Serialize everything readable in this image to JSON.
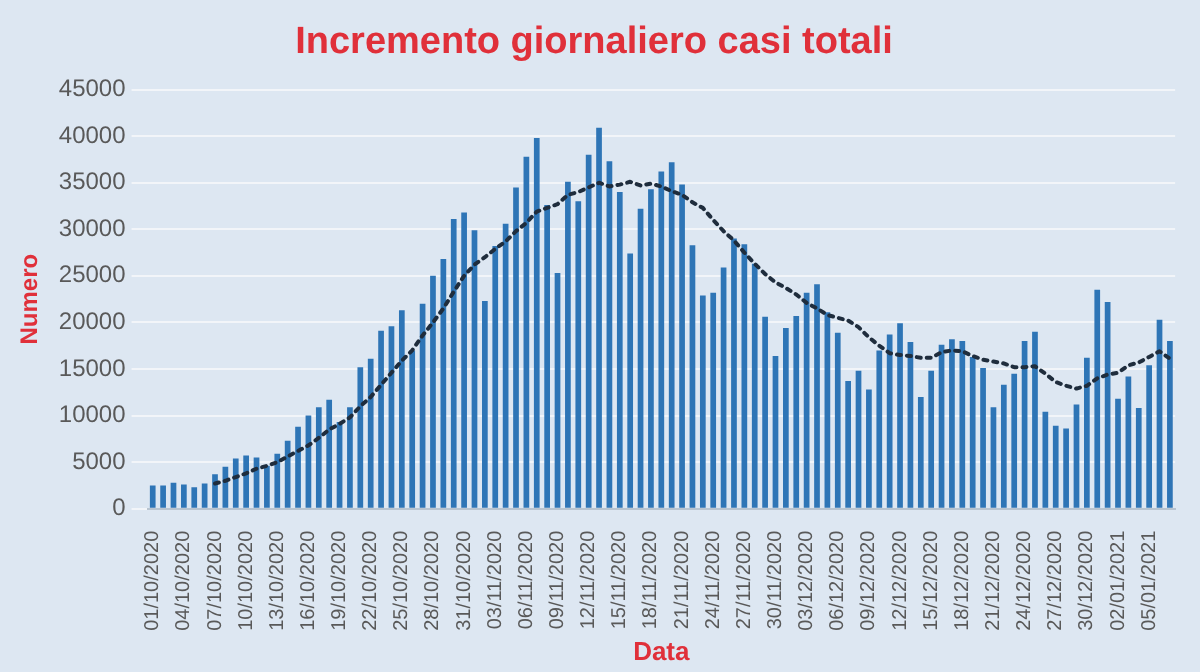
{
  "chart_data": {
    "type": "bar",
    "title": "Incremento giornaliero casi totali",
    "xlabel": "Data",
    "ylabel": "Numero",
    "categories": [
      "01/10/2020",
      null,
      null,
      "04/10/2020",
      null,
      null,
      "07/10/2020",
      null,
      null,
      "10/10/2020",
      null,
      null,
      "13/10/2020",
      null,
      null,
      "16/10/2020",
      null,
      null,
      "19/10/2020",
      null,
      null,
      "22/10/2020",
      null,
      null,
      "25/10/2020",
      null,
      null,
      "28/10/2020",
      null,
      null,
      "31/10/2020",
      null,
      null,
      "03/11/2020",
      null,
      null,
      "06/11/2020",
      null,
      null,
      "09/11/2020",
      null,
      null,
      "12/11/2020",
      null,
      null,
      "15/11/2020",
      null,
      null,
      "18/11/2020",
      null,
      null,
      "21/11/2020",
      null,
      null,
      "24/11/2020",
      null,
      null,
      "27/11/2020",
      null,
      null,
      "30/11/2020",
      null,
      null,
      "03/12/2020",
      null,
      null,
      "06/12/2020",
      null,
      null,
      "09/12/2020",
      null,
      null,
      "12/12/2020",
      null,
      null,
      "15/12/2020",
      null,
      null,
      "18/12/2020",
      null,
      null,
      "21/12/2020",
      null,
      null,
      "24/12/2020",
      null,
      null,
      "27/12/2020",
      null,
      null,
      "30/12/2020",
      null,
      null,
      "02/01/2021",
      null,
      null,
      "05/01/2021",
      null,
      null
    ],
    "series": [
      {
        "color": "#2e75b6",
        "values": [
          2500,
          2500,
          2800,
          2600,
          2300,
          2700,
          3700,
          4500,
          5400,
          5700,
          5500,
          4600,
          5900,
          7300,
          8800,
          10000,
          10900,
          11700,
          9300,
          10900,
          15200,
          16100,
          19100,
          19600,
          21300,
          17000,
          22000,
          25000,
          26800,
          31100,
          31800,
          29900,
          22300,
          28200,
          30600,
          34500,
          37800,
          39800,
          32600,
          25300,
          35100,
          33000,
          38000,
          40900,
          37300,
          34000,
          27400,
          32200,
          34300,
          36200,
          37200,
          34800,
          28300,
          22900,
          23200,
          25900,
          29000,
          28400,
          26300,
          20600,
          16400,
          19400,
          20700,
          23200,
          24100,
          21100,
          18900,
          13700,
          14800,
          12800,
          17000,
          18700,
          19900,
          17900,
          12000,
          14800,
          17600,
          18200,
          18000,
          16300,
          15100,
          10900,
          13300,
          14500,
          18000,
          19000,
          10400,
          8900,
          8600,
          11200,
          16200,
          23500,
          22200,
          11800,
          14200,
          10800,
          15400,
          20300,
          18000
        ]
      },
      {
        "type": "line",
        "color": "#1f2d3d",
        "line_style": "dotted",
        "marker": "none",
        "values": [
          null,
          null,
          null,
          null,
          null,
          null,
          2700,
          3000,
          3400,
          3800,
          4300,
          4600,
          5000,
          5600,
          6200,
          6800,
          7600,
          8500,
          9100,
          9800,
          11000,
          12000,
          13300,
          14600,
          15900,
          17000,
          18600,
          20000,
          21500,
          23300,
          25000,
          26200,
          27000,
          27900,
          28700,
          29800,
          30700,
          31900,
          32300,
          32700,
          33700,
          34000,
          34500,
          35000,
          34600,
          34800,
          35100,
          34700,
          34900,
          34600,
          34100,
          33700,
          32900,
          32300,
          31000,
          29800,
          28800,
          27500,
          26300,
          25200,
          24300,
          23700,
          23000,
          22100,
          21500,
          20800,
          20500,
          20200,
          19500,
          18400,
          17500,
          16700,
          16500,
          16400,
          16200,
          16200,
          16800,
          17000,
          16900,
          16400,
          16000,
          15800,
          15600,
          15200,
          15200,
          15300,
          14500,
          13600,
          13200,
          12900,
          13200,
          14000,
          14400,
          14600,
          15400,
          15700,
          16300,
          16900,
          16100
        ]
      }
    ],
    "ylim": [
      0,
      45000
    ],
    "yticks": [
      0,
      5000,
      10000,
      15000,
      20000,
      25000,
      30000,
      35000,
      40000,
      45000
    ],
    "grid": "y",
    "legend": false
  }
}
